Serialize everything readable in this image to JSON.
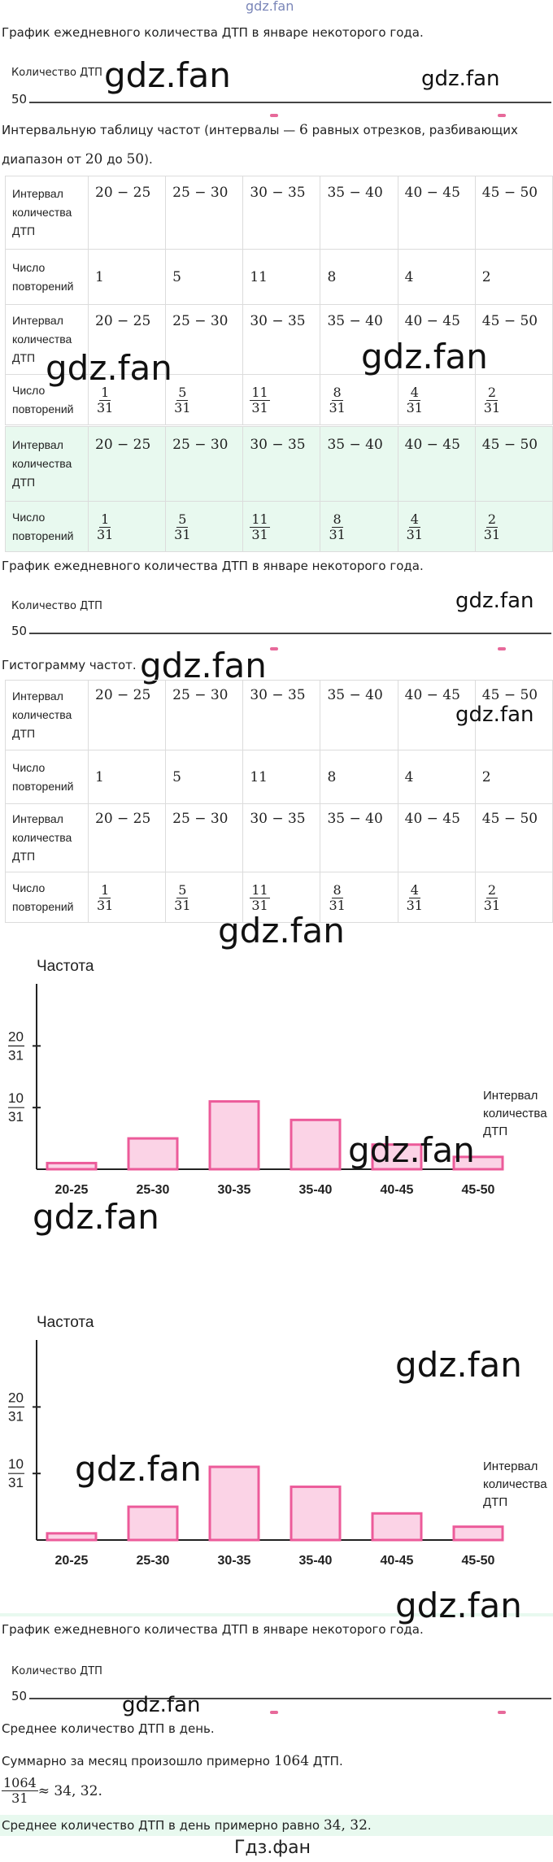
{
  "watermark": "gdz.fan",
  "watermark_top": "gdz.fan",
  "watermark_bottom": "Гдз.фан",
  "sections": {
    "title1": "График ежедневного количества ДТП в январе некоторого года.",
    "axis_label": "Количество ДТП",
    "axis_value": "50",
    "task_interval_table_1": "Интервальную таблицу частот (интервалы — ",
    "task_interval_table_num6": "6",
    "task_interval_table_2": " равных отрезков, разбивающих",
    "task_interval_table_3": "диапазон от ",
    "task_interval_table_num20": "20",
    "task_interval_table_4": " до ",
    "task_interval_table_num50": "50",
    "task_interval_table_5": ").",
    "title2": "График ежедневного количества ДТП в январе некоторого года.",
    "task_histogram": "Гистограмму частот.",
    "title3": "График ежедневного количества ДТП в январе некоторого года.",
    "task_average": "Среднее количество ДТП в день.",
    "sum_text_1": "Суммарно за месяц произошло примерно ",
    "sum_text_num": "1064",
    "sum_text_2": " ДТП.",
    "calc_num": "1064",
    "calc_den": "31",
    "calc_result": " ≈ 34, 32.",
    "answer_1": "Среднее количество ДТП в день примерно равно ",
    "answer_num": "34, 32",
    "answer_2": "."
  },
  "table": {
    "row_label_interval": "Интервал количества ДТП",
    "row_label_count": "Число повторений",
    "intervals": [
      "20 − 25",
      "25 − 30",
      "30 − 35",
      "35 − 40",
      "40 − 45",
      "45 − 50"
    ],
    "counts": [
      "1",
      "5",
      "11",
      "8",
      "4",
      "2"
    ],
    "frac_numerators": [
      "1",
      "5",
      "11",
      "8",
      "4",
      "2"
    ],
    "frac_denominator": "31"
  },
  "chart_data": [
    {
      "type": "bar",
      "ylabel": "Частота",
      "xlabel": "Интервал количества ДТП",
      "categories": [
        "20-25",
        "25-30",
        "30-35",
        "35-40",
        "40-45",
        "45-50"
      ],
      "values": [
        0.0323,
        0.1613,
        0.3548,
        0.2581,
        0.129,
        0.0645
      ],
      "y_ticks": [
        {
          "num": "10",
          "den": "31",
          "value": 0.3226
        },
        {
          "num": "20",
          "den": "31",
          "value": 0.6452
        }
      ],
      "colors": {
        "bar_fill": "#fbd3e6",
        "bar_stroke": "#ec5b9a",
        "axis": "#222222"
      }
    },
    {
      "type": "bar",
      "ylabel": "Частота",
      "xlabel": "Интервал количества ДТП",
      "categories": [
        "20-25",
        "25-30",
        "30-35",
        "35-40",
        "40-45",
        "45-50"
      ],
      "values": [
        0.0323,
        0.1613,
        0.3548,
        0.2581,
        0.129,
        0.0645
      ],
      "y_ticks": [
        {
          "num": "10",
          "den": "31",
          "value": 0.3226
        },
        {
          "num": "20",
          "den": "31",
          "value": 0.6452
        }
      ],
      "colors": {
        "bar_fill": "#fbd3e6",
        "bar_stroke": "#ec5b9a",
        "axis": "#222222"
      }
    }
  ]
}
